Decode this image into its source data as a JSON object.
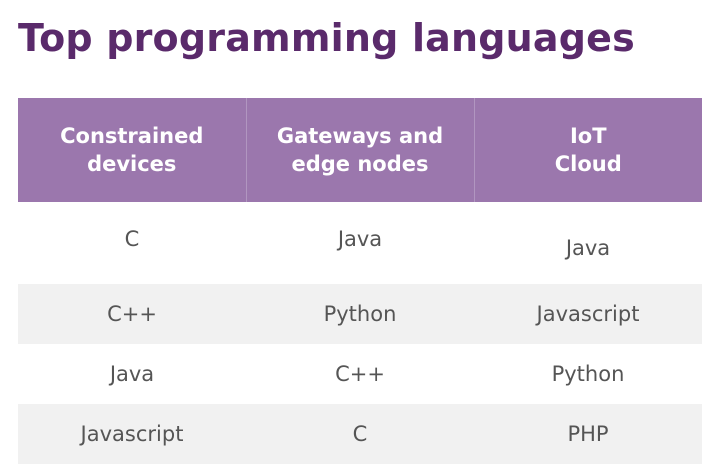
{
  "title": "Top programming languages",
  "table": {
    "headers": [
      "Constrained\ndevices",
      "Gateways and\nedge nodes",
      "IoT\nCloud"
    ],
    "rows": [
      [
        "C",
        "Java",
        "Java"
      ],
      [
        "C++",
        "Python",
        "Javascript"
      ],
      [
        "Java",
        "C++",
        "Python"
      ],
      [
        "Javascript",
        "C",
        "PHP"
      ]
    ]
  },
  "colors": {
    "title": "#5a2a6b",
    "header_bg": "#9b77ad",
    "header_text": "#ffffff",
    "row_shade": "#f1f1f1",
    "cell_text": "#555555"
  }
}
